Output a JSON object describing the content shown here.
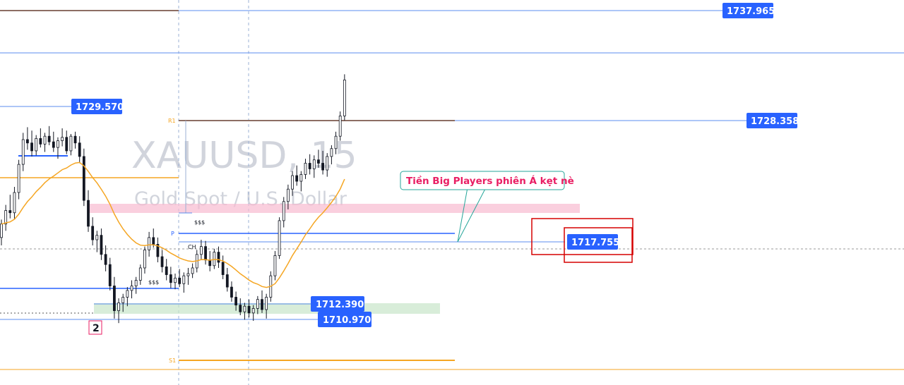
{
  "watermark": {
    "symbol": "XAUUSD, 15",
    "description": "Gold Spot / U.S. Dollar"
  },
  "colors": {
    "candle": "#131722",
    "ema": "#f5a623",
    "price_line": "#2962ff",
    "level_line": "#5b8def",
    "pivot_r1": "#8d6e63",
    "pivot_s1": "#f5a623",
    "orange_level": "#f5a623",
    "zone_pink": "#f8bbd0",
    "zone_green": "#c8e6c9",
    "callout": "#26a69a",
    "annotation_red": "#d50000"
  },
  "annotations": {
    "callout_text": "Tiền Big Players phiên Á kẹt nè",
    "wave_label": "2",
    "liquidity_top": "$$$",
    "liquidity_bottom": "$$$",
    "choch": "CH",
    "pivot_p": "P",
    "pivot_r1": "R1",
    "pivot_s1": "S1"
  },
  "chart_data": {
    "type": "candlestick",
    "symbol": "XAUUSD",
    "timeframe": "15",
    "price_range": [
      1706.5,
      1740.7
    ],
    "price_levels": [
      {
        "name": "top-level",
        "value": 1737.965,
        "label": "1737.965"
      },
      {
        "name": "r1-level",
        "value": 1728.358,
        "label": "1728.358"
      },
      {
        "name": "swing-high",
        "value": 1729.57,
        "label": "1729.570"
      },
      {
        "name": "entry-level",
        "value": 1717.755,
        "label": "1717.755"
      },
      {
        "name": "swing-low",
        "value": 1712.39,
        "label": "1712.390"
      },
      {
        "name": "low-level",
        "value": 1710.97,
        "label": "1710.970"
      }
    ],
    "candles": [
      [
        1719.6,
        1721.2,
        1718.9,
        1720.8
      ],
      [
        1720.8,
        1722.5,
        1720.2,
        1722.0
      ],
      [
        1722.0,
        1723.4,
        1721.3,
        1721.8
      ],
      [
        1721.8,
        1724.1,
        1721.2,
        1723.6
      ],
      [
        1723.6,
        1726.5,
        1723.0,
        1726.1
      ],
      [
        1726.1,
        1728.9,
        1725.5,
        1728.3
      ],
      [
        1728.3,
        1729.4,
        1727.4,
        1728.0
      ],
      [
        1728.0,
        1729.1,
        1726.8,
        1727.3
      ],
      [
        1727.3,
        1728.7,
        1726.9,
        1728.4
      ],
      [
        1728.4,
        1729.3,
        1727.6,
        1727.9
      ],
      [
        1727.9,
        1728.9,
        1727.2,
        1728.6
      ],
      [
        1728.6,
        1729.5,
        1727.8,
        1728.1
      ],
      [
        1728.1,
        1729.0,
        1727.2,
        1727.6
      ],
      [
        1727.6,
        1728.5,
        1726.6,
        1728.2
      ],
      [
        1728.2,
        1729.3,
        1727.7,
        1728.5
      ],
      [
        1728.5,
        1729.1,
        1727.0,
        1727.3
      ],
      [
        1727.3,
        1728.8,
        1726.9,
        1728.6
      ],
      [
        1728.6,
        1729.0,
        1727.5,
        1728.0
      ],
      [
        1728.0,
        1728.6,
        1726.2,
        1726.8
      ],
      [
        1726.8,
        1727.5,
        1722.4,
        1722.9
      ],
      [
        1722.9,
        1723.8,
        1720.1,
        1720.6
      ],
      [
        1720.6,
        1721.4,
        1718.9,
        1719.4
      ],
      [
        1719.4,
        1720.2,
        1718.3,
        1719.8
      ],
      [
        1719.8,
        1720.4,
        1717.6,
        1718.1
      ],
      [
        1718.1,
        1718.9,
        1716.6,
        1717.2
      ],
      [
        1717.2,
        1717.8,
        1714.9,
        1715.3
      ],
      [
        1715.3,
        1716.1,
        1712.4,
        1713.1
      ],
      [
        1713.1,
        1714.2,
        1712.0,
        1713.8
      ],
      [
        1713.8,
        1714.6,
        1713.0,
        1714.3
      ],
      [
        1714.3,
        1715.2,
        1713.5,
        1714.9
      ],
      [
        1714.9,
        1715.8,
        1714.2,
        1715.3
      ],
      [
        1715.3,
        1716.1,
        1714.6,
        1715.8
      ],
      [
        1715.8,
        1717.2,
        1715.4,
        1716.9
      ],
      [
        1716.9,
        1718.8,
        1716.4,
        1718.5
      ],
      [
        1718.5,
        1720.1,
        1717.9,
        1719.6
      ],
      [
        1719.6,
        1720.4,
        1718.7,
        1719.0
      ],
      [
        1719.0,
        1719.6,
        1717.4,
        1717.9
      ],
      [
        1717.9,
        1718.5,
        1716.5,
        1717.0
      ],
      [
        1717.0,
        1717.7,
        1715.8,
        1716.3
      ],
      [
        1716.3,
        1717.0,
        1715.1,
        1715.6
      ],
      [
        1715.6,
        1716.4,
        1715.0,
        1716.0
      ],
      [
        1716.0,
        1716.8,
        1715.2,
        1715.5
      ],
      [
        1715.5,
        1716.5,
        1714.7,
        1716.2
      ],
      [
        1716.2,
        1716.9,
        1715.4,
        1716.4
      ],
      [
        1716.4,
        1717.3,
        1716.0,
        1716.9
      ],
      [
        1716.9,
        1718.5,
        1716.5,
        1718.1
      ],
      [
        1718.1,
        1719.4,
        1717.6,
        1718.8
      ],
      [
        1718.8,
        1719.3,
        1717.2,
        1717.6
      ],
      [
        1717.6,
        1718.4,
        1716.6,
        1717.1
      ],
      [
        1717.1,
        1718.6,
        1716.8,
        1718.3
      ],
      [
        1718.3,
        1718.8,
        1716.9,
        1717.4
      ],
      [
        1717.4,
        1718.0,
        1715.9,
        1716.3
      ],
      [
        1716.3,
        1716.9,
        1714.8,
        1715.2
      ],
      [
        1715.2,
        1715.7,
        1713.9,
        1714.3
      ],
      [
        1714.3,
        1714.8,
        1713.1,
        1713.6
      ],
      [
        1713.6,
        1714.2,
        1712.7,
        1713.0
      ],
      [
        1713.0,
        1713.8,
        1712.3,
        1713.5
      ],
      [
        1713.5,
        1714.1,
        1712.5,
        1712.9
      ],
      [
        1712.9,
        1713.6,
        1712.2,
        1713.3
      ],
      [
        1713.3,
        1714.4,
        1712.8,
        1714.1
      ],
      [
        1714.1,
        1714.9,
        1712.9,
        1713.2
      ],
      [
        1713.2,
        1714.6,
        1712.4,
        1714.3
      ],
      [
        1714.3,
        1716.6,
        1713.9,
        1716.2
      ],
      [
        1716.2,
        1718.4,
        1715.8,
        1718.0
      ],
      [
        1718.0,
        1721.4,
        1717.7,
        1721.1
      ],
      [
        1721.1,
        1723.2,
        1720.5,
        1722.8
      ],
      [
        1722.8,
        1724.3,
        1722.1,
        1723.9
      ],
      [
        1723.9,
        1725.5,
        1723.3,
        1725.1
      ],
      [
        1725.1,
        1726.0,
        1724.2,
        1724.6
      ],
      [
        1724.6,
        1725.5,
        1723.7,
        1725.2
      ],
      [
        1725.2,
        1726.6,
        1724.8,
        1726.2
      ],
      [
        1726.2,
        1727.0,
        1725.2,
        1725.7
      ],
      [
        1725.7,
        1726.9,
        1724.9,
        1726.5
      ],
      [
        1726.5,
        1727.4,
        1725.8,
        1726.2
      ],
      [
        1726.2,
        1727.3,
        1725.2,
        1725.6
      ],
      [
        1725.6,
        1727.1,
        1725.0,
        1726.8
      ],
      [
        1726.8,
        1727.8,
        1726.1,
        1727.5
      ],
      [
        1727.5,
        1729.0,
        1727.0,
        1728.6
      ],
      [
        1728.6,
        1730.8,
        1728.2,
        1730.4
      ],
      [
        1730.4,
        1734.1,
        1730.0,
        1733.6
      ]
    ]
  }
}
